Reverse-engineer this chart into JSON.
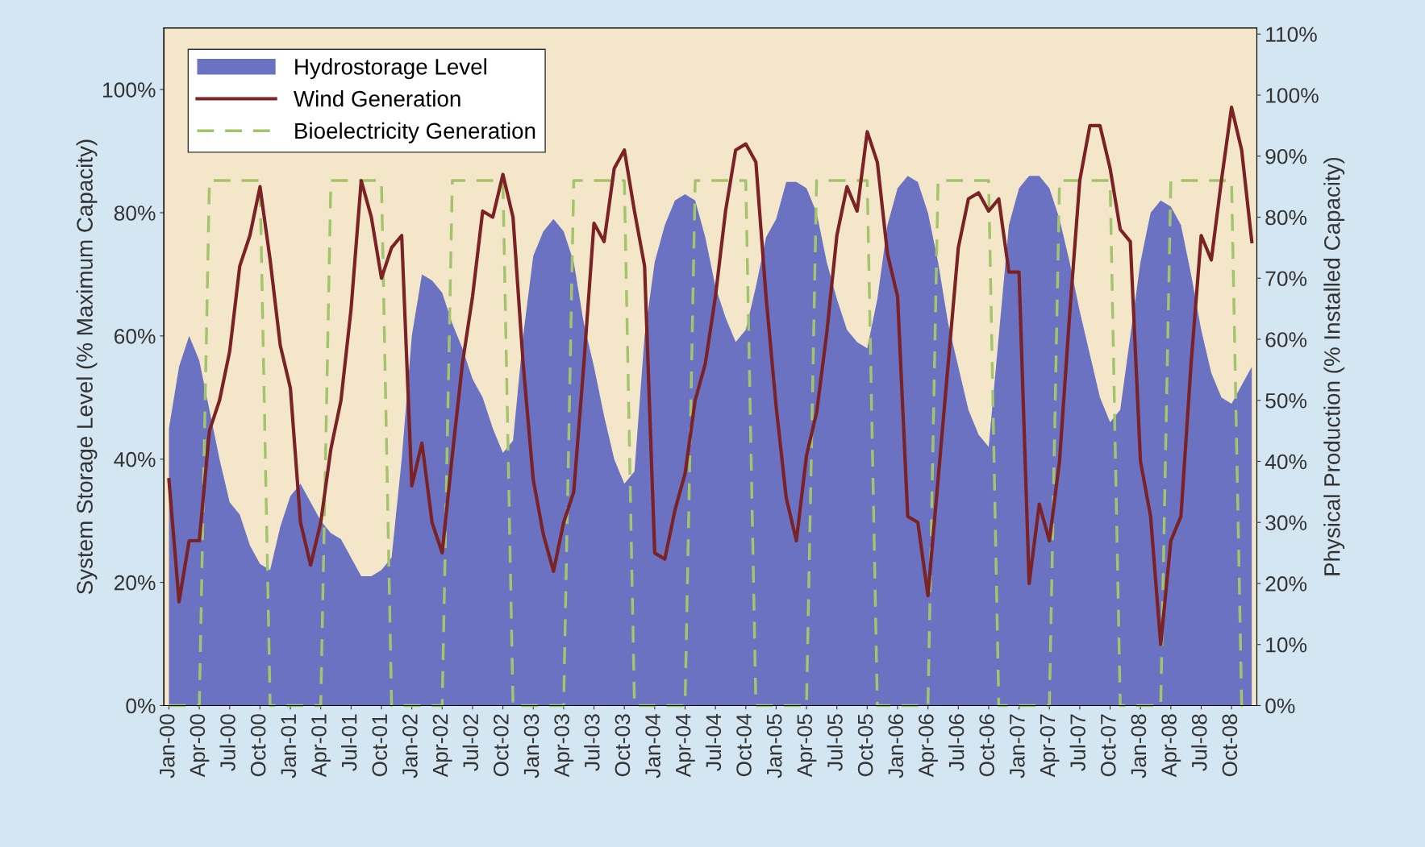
{
  "chart_data": {
    "type": "area",
    "ylabel": "System Storage Level (% Maximum Capacity)",
    "y2label": "Physical Production (% Installed Capacity)",
    "categories": [
      "Jan-00",
      null,
      null,
      "Apr-00",
      null,
      null,
      "Jul-00",
      null,
      null,
      "Oct-00",
      null,
      null,
      "Jan-01",
      null,
      null,
      "Apr-01",
      null,
      null,
      "Jul-01",
      null,
      null,
      "Oct-01",
      null,
      null,
      "Jan-02",
      null,
      null,
      "Apr-02",
      null,
      null,
      "Jul-02",
      null,
      null,
      "Oct-02",
      null,
      null,
      "Jan-03",
      null,
      null,
      "Apr-03",
      null,
      null,
      "Jul-03",
      null,
      null,
      "Oct-03",
      null,
      null,
      "Jan-04",
      null,
      null,
      "Apr-04",
      null,
      null,
      "Jul-04",
      null,
      null,
      "Oct-04",
      null,
      null,
      "Jan-05",
      null,
      null,
      "Apr-05",
      null,
      null,
      "Jul-05",
      null,
      null,
      "Oct-05",
      null,
      null,
      "Jan-06",
      null,
      null,
      "Apr-06",
      null,
      null,
      "Jul-06",
      null,
      null,
      "Oct-06",
      null,
      null,
      "Jan-07",
      null,
      null,
      "Apr-07",
      null,
      null,
      "Jul-07",
      null,
      null,
      "Oct-07",
      null,
      null,
      "Jan-08",
      null,
      null,
      "Apr-08",
      null,
      null,
      "Jul-08",
      null,
      null,
      "Oct-08",
      null,
      null
    ],
    "ylim": [
      0,
      110
    ],
    "yticks": [
      {
        "value": 0,
        "label": "0%"
      },
      {
        "value": 20,
        "label": "20%"
      },
      {
        "value": 40,
        "label": "40%"
      },
      {
        "value": 60,
        "label": "60%"
      },
      {
        "value": 80,
        "label": "80%"
      },
      {
        "value": 100,
        "label": "100%"
      }
    ],
    "y2lim": [
      0,
      111
    ],
    "y2ticks": [
      {
        "value": 0,
        "label": "0%"
      },
      {
        "value": 10,
        "label": "10%"
      },
      {
        "value": 20,
        "label": "20%"
      },
      {
        "value": 30,
        "label": "30%"
      },
      {
        "value": 40,
        "label": "40%"
      },
      {
        "value": 50,
        "label": "50%"
      },
      {
        "value": 60,
        "label": "60%"
      },
      {
        "value": 70,
        "label": "70%"
      },
      {
        "value": 80,
        "label": "80%"
      },
      {
        "value": 90,
        "label": "90%"
      },
      {
        "value": 100,
        "label": "100%"
      },
      {
        "value": 110,
        "label": "110%"
      }
    ],
    "legend": "top left",
    "series": [
      {
        "name": "Hydrostorage Level",
        "color": "#6b72c2",
        "values": [
          45,
          55,
          60,
          56,
          48,
          40,
          33,
          31,
          26,
          23,
          22,
          29,
          34,
          36,
          33,
          30,
          28,
          27,
          24,
          21,
          21,
          22,
          24,
          40,
          60,
          70,
          69,
          67,
          62,
          58,
          53,
          50,
          45,
          41,
          43,
          60,
          73,
          77,
          79,
          77,
          72,
          62,
          55,
          47,
          40,
          36,
          38,
          60,
          72,
          78,
          82,
          83,
          82,
          76,
          68,
          63,
          59,
          61,
          68,
          76,
          79,
          85,
          85,
          84,
          80,
          72,
          66,
          61,
          59,
          58,
          66,
          78,
          84,
          86,
          85,
          80,
          72,
          62,
          55,
          48,
          44,
          42,
          60,
          78,
          84,
          86,
          86,
          84,
          79,
          72,
          64,
          57,
          50,
          46,
          48,
          60,
          72,
          80,
          82,
          81,
          78,
          70,
          61,
          54,
          50,
          49,
          52,
          55
        ]
      },
      {
        "name": "Wind Generation",
        "type": "line",
        "axis": "y2",
        "color": "#7a2226",
        "line_style": "solid",
        "values": [
          37,
          17,
          27,
          27,
          45,
          50,
          58,
          72,
          77,
          85,
          73,
          59,
          52,
          30,
          23,
          30,
          42,
          50,
          65,
          86,
          80,
          70,
          75,
          77,
          36,
          43,
          30,
          25,
          41,
          56,
          67,
          81,
          80,
          87,
          80,
          56,
          37,
          28,
          22,
          30,
          35,
          56,
          79,
          76,
          88,
          91,
          81,
          72,
          25,
          24,
          32,
          38,
          50,
          56,
          67,
          81,
          91,
          92,
          89,
          67,
          49,
          34,
          27,
          41,
          48,
          61,
          77,
          85,
          81,
          94,
          89,
          74,
          67,
          31,
          30,
          18,
          37,
          56,
          75,
          83,
          84,
          81,
          83,
          71,
          71,
          20,
          33,
          27,
          40,
          64,
          86,
          95,
          95,
          88,
          78,
          76,
          40,
          31,
          10,
          27,
          31,
          56,
          77,
          73,
          86,
          98,
          91,
          76
        ]
      },
      {
        "name": "Bioelectricity Generation",
        "type": "line",
        "axis": "y2",
        "color": "#a3c46c",
        "line_style": "dashed",
        "values": [
          0,
          0,
          0,
          0,
          86,
          86,
          86,
          86,
          86,
          86,
          0,
          0,
          0,
          0,
          0,
          0,
          86,
          86,
          86,
          86,
          86,
          86,
          0,
          0,
          0,
          0,
          0,
          0,
          86,
          86,
          86,
          86,
          86,
          86,
          0,
          0,
          0,
          0,
          0,
          0,
          86,
          86,
          86,
          86,
          86,
          86,
          0,
          0,
          0,
          0,
          0,
          0,
          86,
          86,
          86,
          86,
          86,
          86,
          0,
          0,
          0,
          0,
          0,
          0,
          86,
          86,
          86,
          86,
          86,
          86,
          0,
          0,
          0,
          0,
          0,
          0,
          86,
          86,
          86,
          86,
          86,
          86,
          0,
          0,
          0,
          0,
          0,
          0,
          86,
          86,
          86,
          86,
          86,
          86,
          0,
          0,
          0,
          0,
          0,
          86,
          86,
          86,
          86,
          86,
          86,
          86,
          0,
          0
        ]
      }
    ]
  }
}
